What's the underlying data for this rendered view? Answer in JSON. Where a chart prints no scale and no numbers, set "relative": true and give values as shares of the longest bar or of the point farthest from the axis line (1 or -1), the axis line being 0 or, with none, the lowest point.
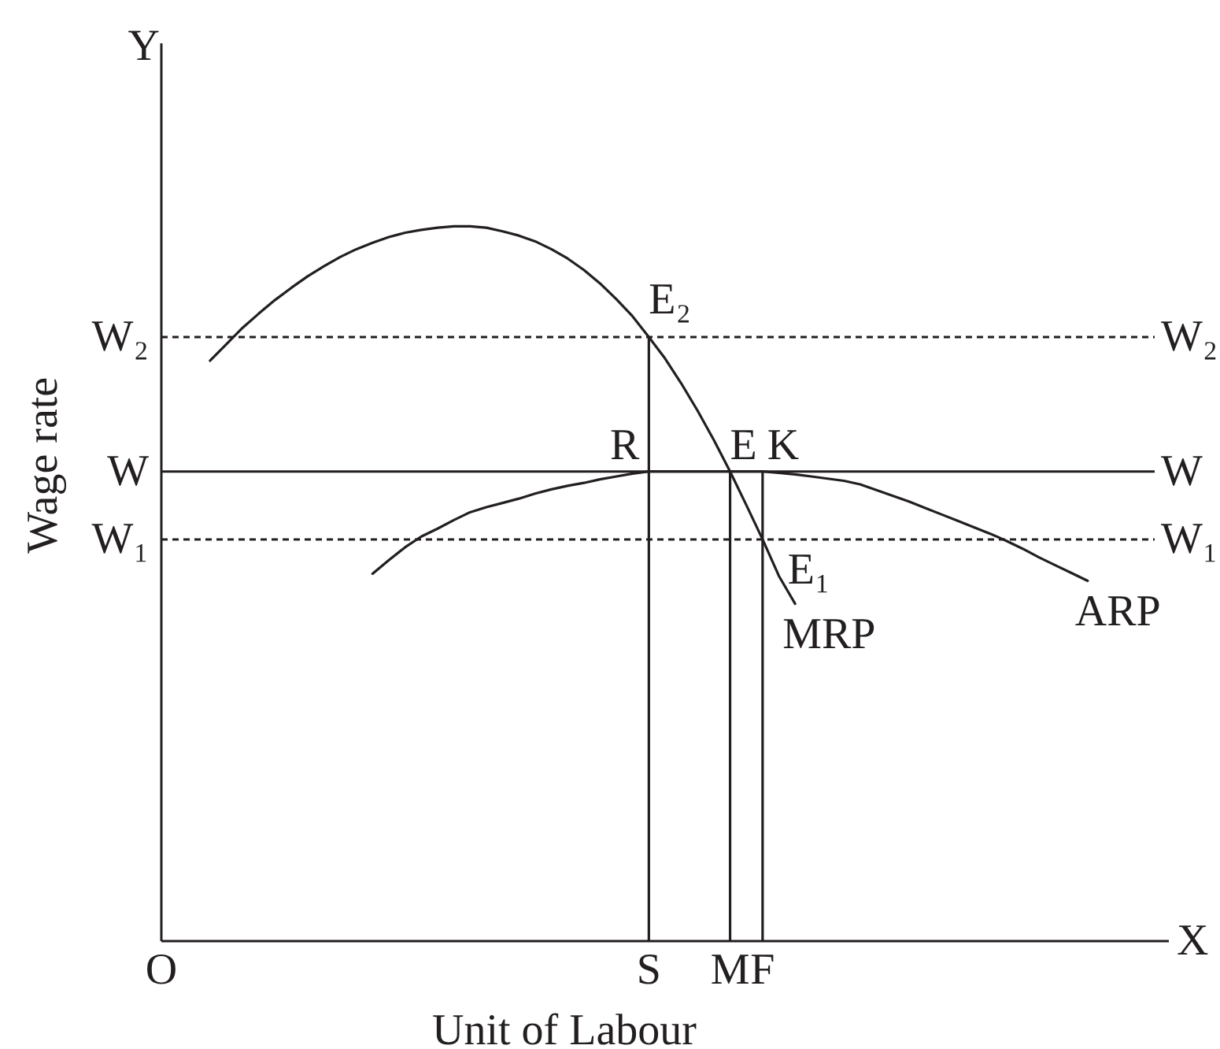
{
  "chart_data": {
    "type": "line",
    "relative": true,
    "xlabel": "Unit of Labour",
    "ylabel": "Wage rate",
    "marker": "none",
    "line_style": "solid",
    "grid": false,
    "legend": false,
    "categories": [
      "O",
      null,
      null,
      null,
      null,
      null,
      null,
      null,
      null,
      null,
      null,
      null,
      null,
      null,
      null,
      null,
      null,
      null,
      null,
      null,
      null,
      null,
      null,
      null,
      null,
      null,
      null,
      null,
      null,
      null,
      "S",
      null,
      null,
      null,
      null,
      "M",
      null,
      "F",
      null,
      null,
      null,
      null,
      null,
      null,
      null,
      null,
      null,
      null,
      null,
      null,
      null,
      null,
      null,
      null,
      null,
      null,
      null,
      null,
      null,
      null,
      null,
      null,
      null
    ],
    "series": [
      {
        "name": "MRP",
        "color": "#231f20",
        "values": [
          null,
          null,
          null,
          0.812,
          0.835,
          0.858,
          0.878,
          0.897,
          0.914,
          0.93,
          0.944,
          0.957,
          0.968,
          0.977,
          0.985,
          0.991,
          0.995,
          0.998,
          1.0,
          1.0,
          0.998,
          0.993,
          0.987,
          0.979,
          0.968,
          0.955,
          0.939,
          0.92,
          0.898,
          0.874,
          0.845,
          0.815,
          0.78,
          0.742,
          0.701,
          0.657,
          0.61,
          0.562,
          0.511,
          0.472,
          null,
          null,
          null,
          null,
          null,
          null,
          null,
          null,
          null,
          null,
          null,
          null,
          null,
          null,
          null,
          null,
          null,
          null,
          null,
          null,
          null,
          null,
          null
        ]
      },
      {
        "name": "ARP",
        "color": "#231f20",
        "values": [
          null,
          null,
          null,
          null,
          null,
          null,
          null,
          null,
          null,
          null,
          null,
          null,
          null,
          0.514,
          0.533,
          0.551,
          0.566,
          0.577,
          0.589,
          0.6,
          0.607,
          0.613,
          0.619,
          0.626,
          0.632,
          0.637,
          0.641,
          0.646,
          0.65,
          0.654,
          0.657,
          0.657,
          0.657,
          0.657,
          0.657,
          0.657,
          0.657,
          0.657,
          0.655,
          0.653,
          0.65,
          0.647,
          0.644,
          0.639,
          0.631,
          0.623,
          0.615,
          0.606,
          0.597,
          0.588,
          0.579,
          0.57,
          0.56,
          0.549,
          0.537,
          0.526,
          0.515,
          0.504,
          null,
          null,
          null,
          null,
          null
        ]
      },
      {
        "type": "bar",
        "color": "#231f20",
        "values": [
          null,
          null,
          null,
          null,
          null,
          null,
          null,
          null,
          null,
          null,
          null,
          null,
          null,
          null,
          null,
          null,
          null,
          null,
          null,
          null,
          null,
          null,
          null,
          null,
          null,
          null,
          null,
          null,
          null,
          null,
          0.845,
          null,
          null,
          null,
          null,
          0.657,
          null,
          0.657,
          null,
          null,
          null,
          null,
          null,
          null,
          null,
          null,
          null,
          null,
          null,
          null,
          null,
          null,
          null,
          null,
          null,
          null,
          null,
          null,
          null,
          null,
          null,
          null,
          null
        ]
      }
    ],
    "ref_lines": [
      {
        "axis": "y",
        "value": 0.845,
        "label": "W₂",
        "line_style": "dashed",
        "color": "#231f20"
      },
      {
        "axis": "y",
        "value": 0.657,
        "label": "W",
        "line_style": "solid",
        "color": "#231f20"
      },
      {
        "axis": "y",
        "value": 0.562,
        "label": "W₁",
        "line_style": "dashed",
        "color": "#231f20"
      }
    ],
    "annotations": [
      "X",
      "Y",
      {
        "text": "E₂",
        "x": "S",
        "y": 0.845
      },
      {
        "text": "R",
        "x": "S",
        "y": 0.657
      },
      {
        "text": "E",
        "x": "M",
        "y": 0.657
      },
      {
        "text": "K",
        "x": "F",
        "y": 0.657
      },
      {
        "text": "E₁",
        "x": "F",
        "y": 0.562
      }
    ]
  }
}
